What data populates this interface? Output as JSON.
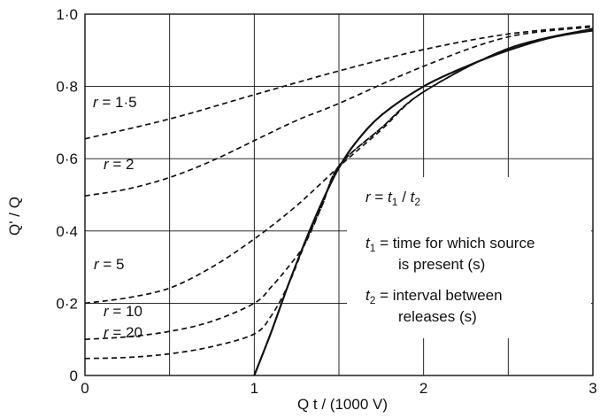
{
  "chart_data": {
    "type": "line",
    "xlabel": "Q t / (1000 V)",
    "ylabel": "Q' / Q",
    "xlim": [
      0,
      3
    ],
    "ylim": [
      0,
      1.0
    ],
    "x_ticks": [
      "0",
      "1",
      "2",
      "3"
    ],
    "y_ticks": [
      "0",
      "0·2",
      "0·4",
      "0·6",
      "0·8",
      "1·0"
    ],
    "grid": true,
    "series": [
      {
        "name": "r = 1·5",
        "style": "dashed",
        "x": [
          0,
          0.5,
          1.0,
          1.5,
          2.0,
          2.5,
          3.0
        ],
        "y": [
          0.655,
          0.71,
          0.777,
          0.843,
          0.902,
          0.945,
          0.968
        ]
      },
      {
        "name": "r = 2",
        "style": "dashed",
        "x": [
          0,
          0.25,
          0.5,
          0.75,
          1.0,
          1.25,
          1.5,
          2.0,
          2.5,
          3.0
        ],
        "y": [
          0.497,
          0.516,
          0.548,
          0.594,
          0.65,
          0.706,
          0.753,
          0.856,
          0.937,
          0.965
        ]
      },
      {
        "name": "r = 5",
        "style": "dashed",
        "x": [
          0,
          0.25,
          0.5,
          0.75,
          1.0,
          1.25,
          1.5,
          1.75,
          2.0,
          2.5,
          3.0
        ],
        "y": [
          0.2,
          0.215,
          0.242,
          0.3,
          0.378,
          0.47,
          0.578,
          0.68,
          0.785,
          0.905,
          0.96
        ]
      },
      {
        "name": "r = 10",
        "style": "dashed",
        "x": [
          0,
          0.25,
          0.5,
          0.75,
          1.0,
          1.1,
          1.2,
          1.3,
          1.4,
          1.5,
          1.75,
          2.0,
          2.5,
          3.0
        ],
        "y": [
          0.1,
          0.107,
          0.122,
          0.15,
          0.2,
          0.245,
          0.3,
          0.365,
          0.47,
          0.58,
          0.685,
          0.785,
          0.905,
          0.96
        ]
      },
      {
        "name": "r = 20",
        "style": "dashed",
        "x": [
          0,
          0.25,
          0.5,
          0.75,
          1.0,
          1.1,
          1.2,
          1.3,
          1.4,
          1.5,
          1.75,
          2.0,
          2.5,
          3.0
        ],
        "y": [
          0.047,
          0.05,
          0.06,
          0.08,
          0.115,
          0.165,
          0.25,
          0.365,
          0.47,
          0.58,
          0.685,
          0.785,
          0.905,
          0.96
        ]
      },
      {
        "name": "",
        "style": "solid",
        "x": [
          1.0,
          1.1,
          1.2,
          1.3,
          1.4,
          1.5,
          1.6,
          1.75,
          2.0,
          2.25,
          2.5,
          2.75,
          3.0
        ],
        "y": [
          0.0,
          0.12,
          0.25,
          0.37,
          0.48,
          0.575,
          0.645,
          0.72,
          0.8,
          0.855,
          0.9,
          0.935,
          0.955
        ]
      }
    ],
    "curve_labels": [
      {
        "prefix": "r",
        "value": " = 1·5"
      },
      {
        "prefix": "r",
        "value": " = 2"
      },
      {
        "prefix": "r",
        "value": " = 5"
      },
      {
        "prefix": "r",
        "value": " = 10"
      },
      {
        "prefix": "r",
        "value": " = 20"
      }
    ],
    "annotation": {
      "line1": {
        "lhs": "r",
        "eq": " = ",
        "t1": "t",
        "sub1": "1",
        "slash": " / ",
        "t2": "t",
        "sub2": "2"
      },
      "line2": {
        "sym": "t",
        "sub": "1",
        "text": " = time for which source"
      },
      "line3": {
        "text": "is present (s)"
      },
      "line4": {
        "sym": "t",
        "sub": "2",
        "text": " = interval between"
      },
      "line5": {
        "text": "releases (s)"
      }
    }
  }
}
